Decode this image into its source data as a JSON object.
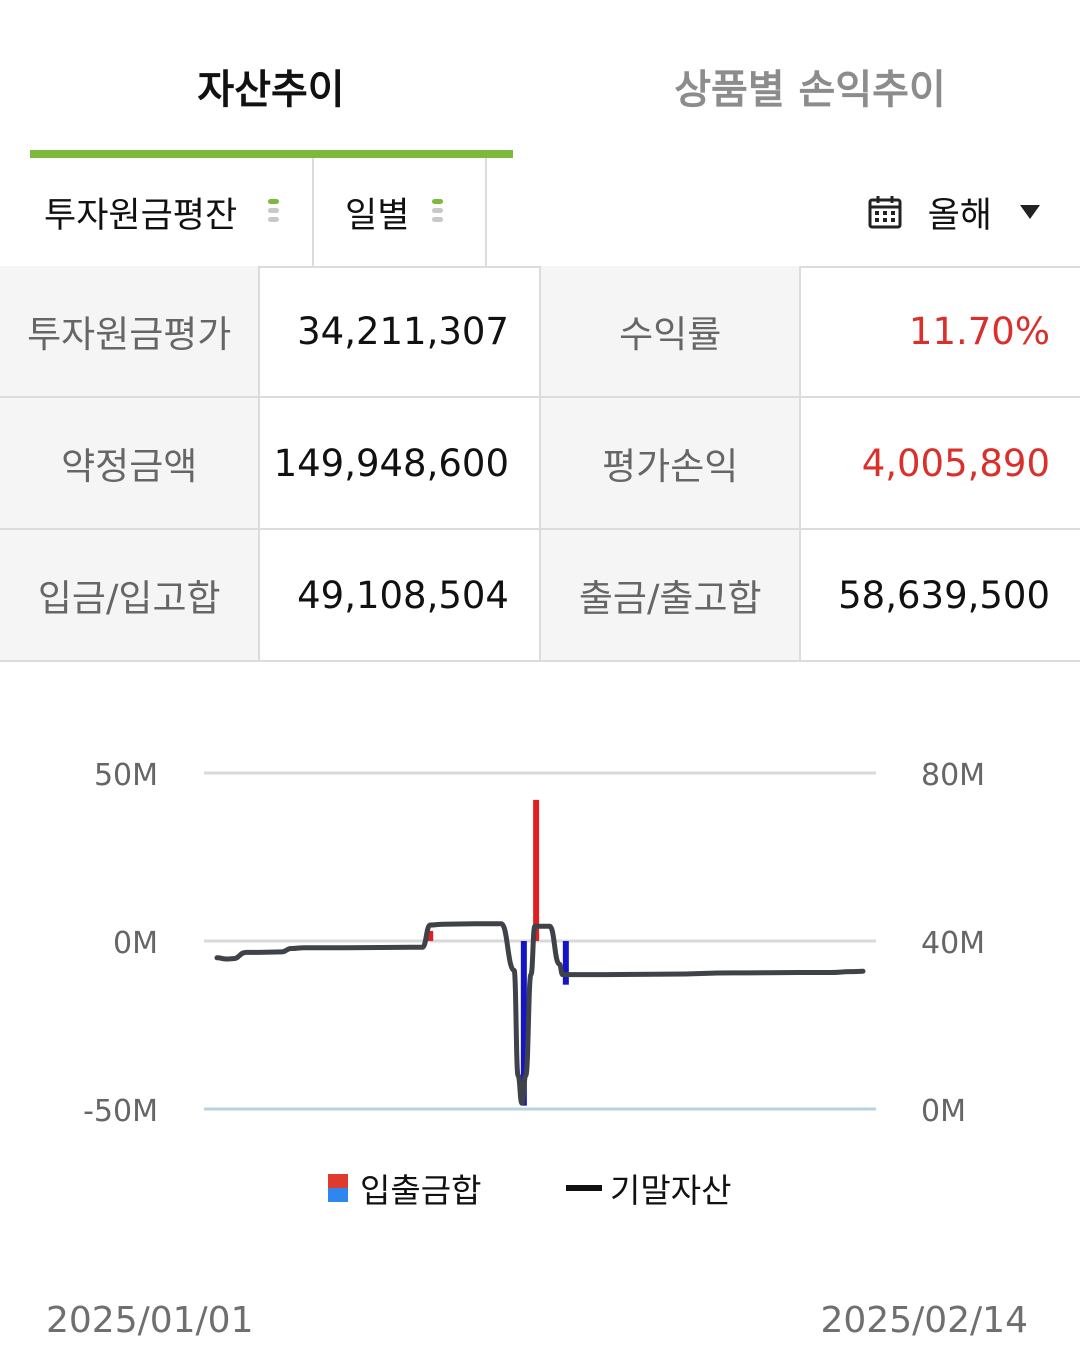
{
  "tabs": [
    {
      "label": "자산추이",
      "active": true
    },
    {
      "label": "상품별 손익추이",
      "active": false
    }
  ],
  "filters": {
    "basis": "투자원금평잔",
    "interval": "일별",
    "period": "올해"
  },
  "summary": {
    "rows": [
      [
        {
          "label": "투자원금평가",
          "value": "34,211,307",
          "color": "#111111"
        },
        {
          "label": "수익률",
          "value": "11.70%",
          "color": "#d9302c"
        }
      ],
      [
        {
          "label": "약정금액",
          "value": "149,948,600",
          "color": "#111111"
        },
        {
          "label": "평가손익",
          "value": "4,005,890",
          "color": "#d9302c"
        }
      ],
      [
        {
          "label": "입금/입고합",
          "value": "49,108,504",
          "color": "#111111"
        },
        {
          "label": "출금/출고합",
          "value": "58,639,500",
          "color": "#111111"
        }
      ]
    ]
  },
  "chart_data": {
    "type": "bar+line",
    "left_axis": {
      "ticks": [
        "50M",
        "0M",
        "-50M"
      ],
      "range": [
        -50,
        50
      ],
      "unit": "M"
    },
    "right_axis": {
      "ticks": [
        "80M",
        "40M",
        "0M"
      ],
      "range": [
        0,
        80
      ],
      "unit": "M"
    },
    "x_start": "2025/01/01",
    "x_end": "2025/02/14",
    "colors": {
      "inflow": "#e02020",
      "outflow": "#1515c8",
      "line": "#404249",
      "grid": "#d9d9d9",
      "baseline": "#b9d3de"
    },
    "flow_series": {
      "name": "입출금합",
      "points": [
        {
          "t": 0.33,
          "value": 3
        },
        {
          "t": 0.475,
          "value": -49
        },
        {
          "t": 0.494,
          "value": 42
        },
        {
          "t": 0.54,
          "value": -13
        }
      ]
    },
    "asset_series": {
      "name": "기말자산",
      "points": [
        [
          0.0,
          36.0
        ],
        [
          0.015,
          35.7
        ],
        [
          0.025,
          35.8
        ],
        [
          0.045,
          37.3
        ],
        [
          0.065,
          37.3
        ],
        [
          0.1,
          37.4
        ],
        [
          0.115,
          38.2
        ],
        [
          0.135,
          38.4
        ],
        [
          0.2,
          38.4
        ],
        [
          0.3,
          38.5
        ],
        [
          0.318,
          38.5
        ],
        [
          0.33,
          43.8
        ],
        [
          0.35,
          44.0
        ],
        [
          0.4,
          44.1
        ],
        [
          0.44,
          44.1
        ],
        [
          0.46,
          33.0
        ],
        [
          0.466,
          8.0
        ],
        [
          0.472,
          1.4
        ],
        [
          0.478,
          8.0
        ],
        [
          0.486,
          32.0
        ],
        [
          0.492,
          43.5
        ],
        [
          0.515,
          43.5
        ],
        [
          0.53,
          34.5
        ],
        [
          0.535,
          32.0
        ],
        [
          0.56,
          32.0
        ],
        [
          0.6,
          32.0
        ],
        [
          0.7,
          32.1
        ],
        [
          0.8,
          32.4
        ],
        [
          0.9,
          32.5
        ],
        [
          0.95,
          32.5
        ],
        [
          0.98,
          32.7
        ],
        [
          1.0,
          32.8
        ]
      ]
    }
  },
  "legend": {
    "flow": "입출금합",
    "asset": "기말자산"
  },
  "dates": {
    "start": "2025/01/01",
    "end": "2025/02/14"
  }
}
